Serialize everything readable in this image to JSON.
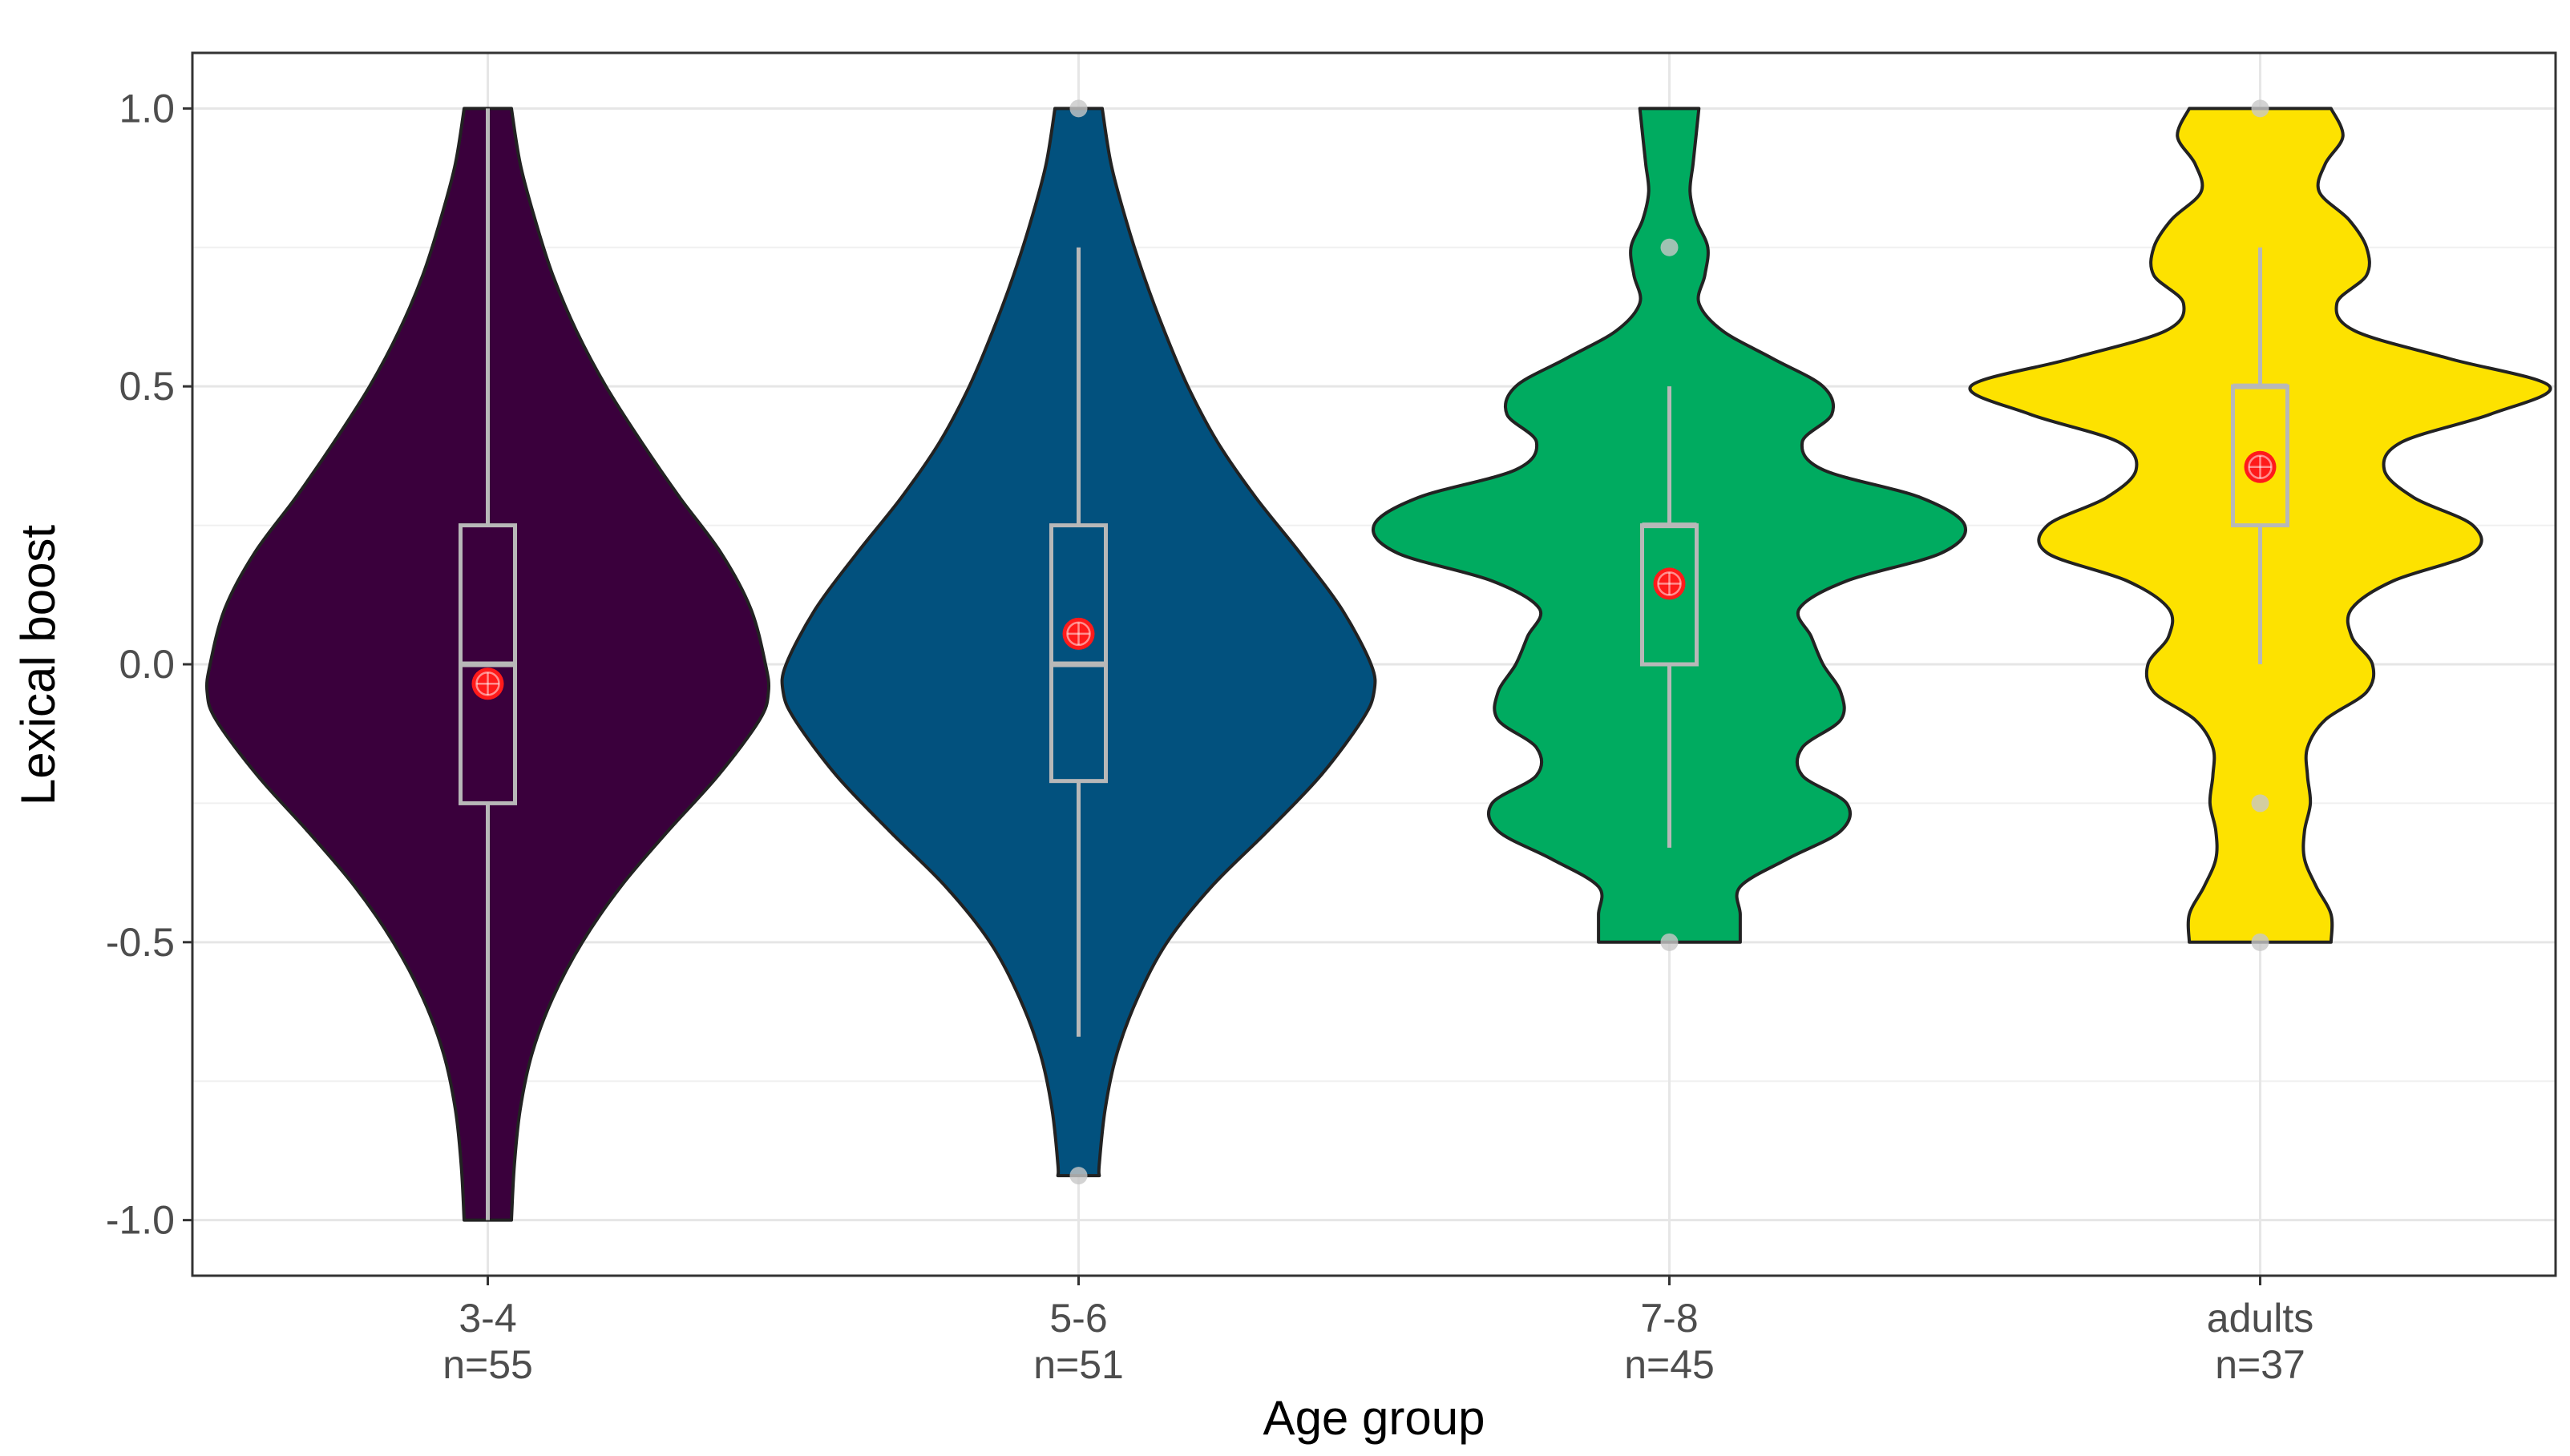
{
  "chart_data": {
    "type": "violin",
    "title": "",
    "xlabel": "Age group",
    "ylabel": "Lexical boost",
    "ylim": [
      -1.1,
      1.1
    ],
    "yticks": [
      "1.0",
      "0.5",
      "0.0",
      "-0.5",
      "-1.0"
    ],
    "ytick_values": [
      1.0,
      0.5,
      0.0,
      -0.5,
      -1.0
    ],
    "grid": true,
    "categories": [
      "3-4",
      "5-6",
      "7-8",
      "adults"
    ],
    "n_labels": [
      "n=55",
      "n=51",
      "n=45",
      "n=37"
    ],
    "groups": [
      {
        "name": "3-4",
        "n": 55,
        "fill": "#3a003c",
        "min": -1.0,
        "max": 1.0,
        "q1": -0.25,
        "median": 0.0,
        "q3": 0.25,
        "whisker_low": -1.0,
        "whisker_high": 1.0,
        "mean": -0.035,
        "outliers": [],
        "density": [
          [
            1.0,
            0.08
          ],
          [
            0.9,
            0.11
          ],
          [
            0.8,
            0.16
          ],
          [
            0.7,
            0.22
          ],
          [
            0.6,
            0.3
          ],
          [
            0.5,
            0.4
          ],
          [
            0.4,
            0.52
          ],
          [
            0.3,
            0.65
          ],
          [
            0.2,
            0.79
          ],
          [
            0.1,
            0.89
          ],
          [
            0.0,
            0.94
          ],
          [
            -0.05,
            0.95
          ],
          [
            -0.1,
            0.92
          ],
          [
            -0.2,
            0.78
          ],
          [
            -0.3,
            0.61
          ],
          [
            -0.4,
            0.45
          ],
          [
            -0.5,
            0.32
          ],
          [
            -0.6,
            0.22
          ],
          [
            -0.7,
            0.15
          ],
          [
            -0.8,
            0.11
          ],
          [
            -0.9,
            0.09
          ],
          [
            -1.0,
            0.08
          ]
        ]
      },
      {
        "name": "5-6",
        "n": 51,
        "fill": "#02517e",
        "min": -0.92,
        "max": 1.0,
        "q1": -0.21,
        "median": 0.0,
        "q3": 0.25,
        "whisker_low": -0.67,
        "whisker_high": 0.75,
        "mean": 0.055,
        "outliers": [
          1.0,
          -0.92
        ],
        "density": [
          [
            1.0,
            0.08
          ],
          [
            0.9,
            0.11
          ],
          [
            0.8,
            0.16
          ],
          [
            0.7,
            0.22
          ],
          [
            0.6,
            0.29
          ],
          [
            0.5,
            0.37
          ],
          [
            0.4,
            0.47
          ],
          [
            0.3,
            0.6
          ],
          [
            0.2,
            0.75
          ],
          [
            0.1,
            0.89
          ],
          [
            0.0,
            0.99
          ],
          [
            -0.05,
            1.0
          ],
          [
            -0.1,
            0.96
          ],
          [
            -0.2,
            0.82
          ],
          [
            -0.3,
            0.64
          ],
          [
            -0.4,
            0.45
          ],
          [
            -0.5,
            0.3
          ],
          [
            -0.6,
            0.2
          ],
          [
            -0.7,
            0.13
          ],
          [
            -0.8,
            0.09
          ],
          [
            -0.9,
            0.07
          ],
          [
            -0.92,
            0.07
          ]
        ]
      },
      {
        "name": "7-8",
        "n": 45,
        "fill": "#00ab60",
        "min": -0.5,
        "max": 1.0,
        "q1": 0.0,
        "median": 0.25,
        "q3": 0.25,
        "whisker_low": -0.33,
        "whisker_high": 0.5,
        "mean": 0.145,
        "outliers": [
          0.75,
          -0.5
        ],
        "density": [
          [
            1.0,
            0.1
          ],
          [
            0.95,
            0.09
          ],
          [
            0.9,
            0.08
          ],
          [
            0.85,
            0.07
          ],
          [
            0.8,
            0.09
          ],
          [
            0.75,
            0.13
          ],
          [
            0.7,
            0.12
          ],
          [
            0.65,
            0.1
          ],
          [
            0.6,
            0.18
          ],
          [
            0.55,
            0.35
          ],
          [
            0.5,
            0.52
          ],
          [
            0.45,
            0.55
          ],
          [
            0.4,
            0.45
          ],
          [
            0.35,
            0.52
          ],
          [
            0.3,
            0.85
          ],
          [
            0.25,
            1.0
          ],
          [
            0.2,
            0.92
          ],
          [
            0.15,
            0.6
          ],
          [
            0.1,
            0.44
          ],
          [
            0.05,
            0.48
          ],
          [
            0.0,
            0.52
          ],
          [
            -0.05,
            0.58
          ],
          [
            -0.1,
            0.58
          ],
          [
            -0.15,
            0.45
          ],
          [
            -0.2,
            0.45
          ],
          [
            -0.25,
            0.6
          ],
          [
            -0.3,
            0.58
          ],
          [
            -0.35,
            0.4
          ],
          [
            -0.4,
            0.24
          ],
          [
            -0.45,
            0.24
          ],
          [
            -0.5,
            0.24
          ]
        ]
      },
      {
        "name": "adults",
        "n": 37,
        "fill": "#fde200",
        "min": -0.5,
        "max": 1.0,
        "q1": 0.25,
        "median": 0.5,
        "q3": 0.5,
        "whisker_low": 0.0,
        "whisker_high": 0.75,
        "mean": 0.355,
        "outliers": [
          1.0,
          -0.25,
          -0.5
        ],
        "density": [
          [
            1.0,
            0.24
          ],
          [
            0.95,
            0.28
          ],
          [
            0.9,
            0.22
          ],
          [
            0.85,
            0.2
          ],
          [
            0.8,
            0.3
          ],
          [
            0.75,
            0.36
          ],
          [
            0.7,
            0.36
          ],
          [
            0.65,
            0.26
          ],
          [
            0.6,
            0.32
          ],
          [
            0.55,
            0.64
          ],
          [
            0.5,
            0.98
          ],
          [
            0.45,
            0.78
          ],
          [
            0.4,
            0.48
          ],
          [
            0.35,
            0.42
          ],
          [
            0.3,
            0.52
          ],
          [
            0.25,
            0.72
          ],
          [
            0.2,
            0.72
          ],
          [
            0.15,
            0.45
          ],
          [
            0.1,
            0.31
          ],
          [
            0.05,
            0.31
          ],
          [
            0.0,
            0.38
          ],
          [
            -0.05,
            0.36
          ],
          [
            -0.1,
            0.22
          ],
          [
            -0.15,
            0.16
          ],
          [
            -0.2,
            0.16
          ],
          [
            -0.25,
            0.17
          ],
          [
            -0.3,
            0.15
          ],
          [
            -0.35,
            0.15
          ],
          [
            -0.4,
            0.19
          ],
          [
            -0.45,
            0.24
          ],
          [
            -0.5,
            0.24
          ]
        ]
      }
    ]
  }
}
